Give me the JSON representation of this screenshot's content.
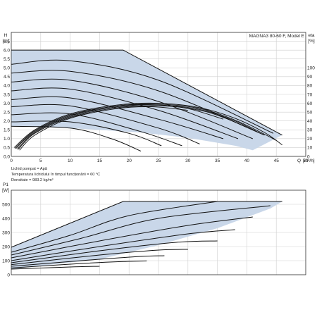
{
  "chart_data": [
    {
      "type": "line",
      "title": "MAGNA3 80-60 F, Model E",
      "xlabel": "Q [m³/h]",
      "ylabel_left": "H [m]",
      "ylabel_right": "eta [%]",
      "xlim": [
        0,
        50
      ],
      "ylim": [
        0,
        7
      ],
      "eta_lim": [
        0,
        140
      ],
      "x_ticks": [
        "0",
        "5",
        "10",
        "15",
        "20",
        "25",
        "30",
        "35",
        "40",
        "45",
        "50"
      ],
      "y_ticks": [
        "0.0",
        "0.5",
        "1.0",
        "1.5",
        "2.0",
        "2.5",
        "3.0",
        "3.5",
        "4.0",
        "4.5",
        "5.0",
        "5.5",
        "6.0",
        "6.5",
        "7.0"
      ],
      "eta_ticks": [
        "0",
        "10",
        "20",
        "30",
        "40",
        "50",
        "60",
        "70",
        "80",
        "90",
        "100"
      ],
      "grid": true,
      "fill_color": "#c9d7e9",
      "envelope": [
        [
          0,
          6.0
        ],
        [
          19,
          6.0
        ],
        [
          46,
          1.2
        ],
        [
          41,
          0.35
        ],
        [
          38,
          0.6
        ],
        [
          30,
          1.05
        ],
        [
          22,
          1.35
        ],
        [
          10,
          1.6
        ],
        [
          0,
          1.7
        ]
      ],
      "head_curves": [
        {
          "values": [
            [
              0,
              6.0
            ],
            [
              19,
              6.0
            ],
            [
              46,
              1.2
            ]
          ]
        },
        {
          "values": [
            [
              0,
              5.2
            ],
            [
              10,
              5.4
            ],
            [
              25,
              4.3
            ],
            [
              44.5,
              1.3
            ]
          ]
        },
        {
          "values": [
            [
              0,
              4.7
            ],
            [
              10,
              4.8
            ],
            [
              25,
              3.7
            ],
            [
              43,
              1.2
            ]
          ]
        },
        {
          "values": [
            [
              0,
              4.2
            ],
            [
              10,
              4.3
            ],
            [
              25,
              3.1
            ],
            [
              41,
              1.0
            ]
          ]
        },
        {
          "values": [
            [
              0,
              3.7
            ],
            [
              10,
              3.8
            ],
            [
              25,
              2.6
            ],
            [
              38.5,
              1.0
            ]
          ]
        },
        {
          "values": [
            [
              0,
              3.2
            ],
            [
              10,
              3.3
            ],
            [
              25,
              2.1
            ],
            [
              36,
              1.0
            ]
          ]
        },
        {
          "values": [
            [
              0,
              2.8
            ],
            [
              10,
              2.85
            ],
            [
              25,
              1.6
            ],
            [
              32,
              0.7
            ]
          ]
        },
        {
          "values": [
            [
              0,
              2.35
            ],
            [
              10,
              2.4
            ],
            [
              22,
              1.4
            ],
            [
              29,
              0.6
            ]
          ]
        },
        {
          "values": [
            [
              0,
              1.95
            ],
            [
              10,
              1.95
            ],
            [
              20,
              1.3
            ],
            [
              25.5,
              0.6
            ]
          ]
        },
        {
          "values": [
            [
              0,
              1.7
            ],
            [
              10,
              1.6
            ],
            [
              17,
              1.0
            ],
            [
              22,
              0.3
            ]
          ]
        }
      ],
      "eta_curves": [
        {
          "values": [
            [
              0.5,
              10
            ],
            [
              4,
              30
            ],
            [
              10,
              48
            ],
            [
              18,
              58
            ],
            [
              25,
              60
            ],
            [
              32,
              55
            ],
            [
              38,
              43
            ],
            [
              43,
              27
            ],
            [
              46,
              13
            ]
          ]
        },
        {
          "values": [
            [
              0.6,
              9
            ],
            [
              4,
              29
            ],
            [
              10,
              47
            ],
            [
              18,
              57
            ],
            [
              25,
              59
            ],
            [
              32,
              54
            ],
            [
              38,
              41
            ],
            [
              43,
              25
            ],
            [
              45,
              18
            ]
          ]
        },
        {
          "values": [
            [
              0.8,
              9
            ],
            [
              4,
              28
            ],
            [
              10,
              46
            ],
            [
              18,
              57
            ],
            [
              25,
              58
            ],
            [
              32,
              53
            ],
            [
              38,
              40
            ],
            [
              42,
              27
            ]
          ]
        },
        {
          "values": [
            [
              1,
              8
            ],
            [
              4,
              27
            ],
            [
              10,
              45
            ],
            [
              18,
              56
            ],
            [
              25,
              58
            ],
            [
              32,
              52
            ],
            [
              36,
              44
            ],
            [
              40,
              33
            ]
          ]
        },
        {
          "values": [
            [
              1.2,
              8
            ],
            [
              4,
              26
            ],
            [
              10,
              44
            ],
            [
              18,
              55
            ],
            [
              25,
              57
            ],
            [
              30,
              54
            ],
            [
              36,
              42
            ]
          ]
        },
        {
          "values": [
            [
              1.4,
              7
            ],
            [
              4,
              24
            ],
            [
              10,
              43
            ],
            [
              18,
              54
            ],
            [
              24,
              56
            ],
            [
              30,
              52
            ]
          ]
        }
      ]
    },
    {
      "type": "line",
      "title": "",
      "xlabel": "",
      "ylabel": "P1 [W]",
      "xlim": [
        0,
        50
      ],
      "ylim": [
        0,
        600
      ],
      "y_ticks": [
        "0",
        "100",
        "200",
        "300",
        "400",
        "500"
      ],
      "grid": true,
      "fill_color": "#c9d7e9",
      "envelope": [
        [
          0,
          195
        ],
        [
          19,
          520
        ],
        [
          46,
          520
        ],
        [
          44,
          470
        ],
        [
          35,
          330
        ],
        [
          25,
          210
        ],
        [
          15,
          110
        ],
        [
          0,
          40
        ]
      ],
      "power_curves": [
        {
          "values": [
            [
              0,
              195
            ],
            [
              19,
              520
            ],
            [
              46,
              520
            ]
          ]
        },
        {
          "values": [
            [
              0,
              160
            ],
            [
              10,
              280
            ],
            [
              20,
              420
            ],
            [
              35,
              520
            ]
          ]
        },
        {
          "values": [
            [
              0,
              140
            ],
            [
              12,
              260
            ],
            [
              25,
              400
            ],
            [
              44,
              490
            ]
          ]
        },
        {
          "values": [
            [
              0,
              120
            ],
            [
              15,
              240
            ],
            [
              30,
              350
            ],
            [
              41,
              410
            ]
          ]
        },
        {
          "values": [
            [
              0,
              100
            ],
            [
              15,
              200
            ],
            [
              30,
              290
            ],
            [
              38,
              320
            ]
          ]
        },
        {
          "values": [
            [
              0,
              85
            ],
            [
              15,
              170
            ],
            [
              28,
              230
            ],
            [
              35,
              240
            ]
          ]
        },
        {
          "values": [
            [
              0,
              72
            ],
            [
              15,
              140
            ],
            [
              25,
              175
            ],
            [
              30,
              180
            ]
          ]
        },
        {
          "values": [
            [
              0,
              60
            ],
            [
              15,
              110
            ],
            [
              22,
              130
            ],
            [
              26,
              135
            ]
          ]
        },
        {
          "values": [
            [
              0,
              48
            ],
            [
              12,
              80
            ],
            [
              20,
              95
            ],
            [
              23,
              98
            ]
          ]
        },
        {
          "values": [
            [
              0,
              40
            ],
            [
              10,
              55
            ],
            [
              15,
              60
            ]
          ]
        }
      ]
    }
  ],
  "fluid_info": {
    "line1": "Lichid pompat = Apă",
    "line2": "Temperatura lichidului în timpul funcționării = 60 °C",
    "line3": "Densitate = 983.2 kg/m³"
  }
}
